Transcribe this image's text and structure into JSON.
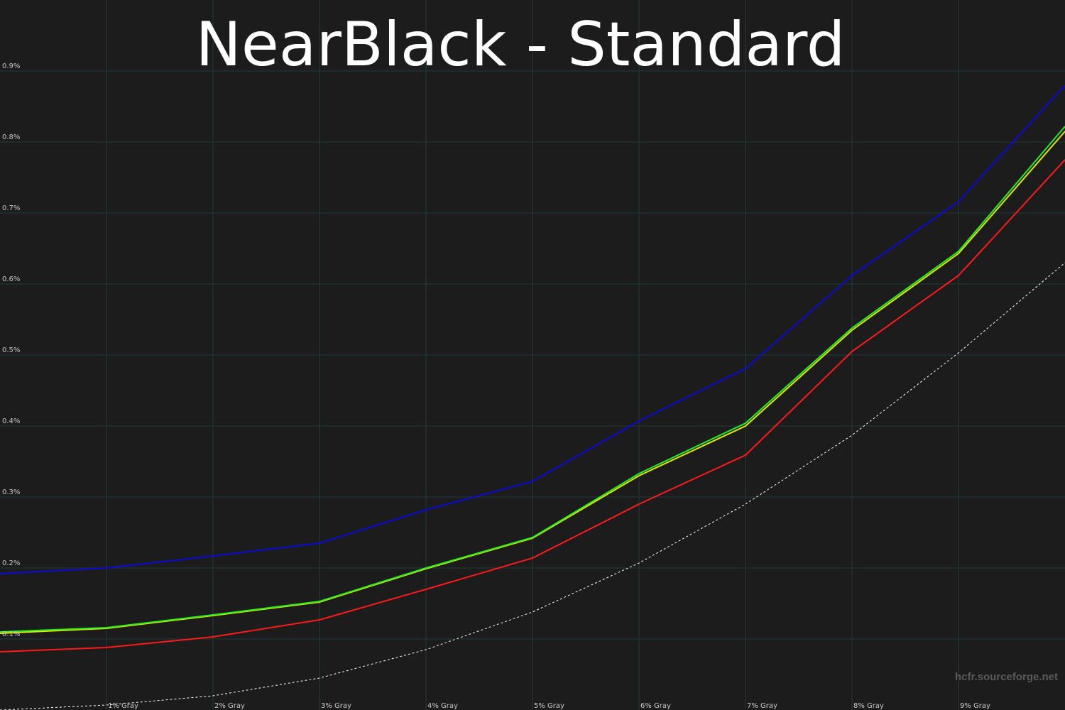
{
  "chart_data": {
    "type": "line",
    "title": "NearBlack - Standard",
    "watermark": "hcfr.sourceforge.net",
    "x": [
      0,
      1,
      2,
      3,
      4,
      5,
      6,
      7,
      8,
      9,
      10
    ],
    "xlim": [
      0,
      10
    ],
    "xticks": [
      {
        "value": 1,
        "label": "1% Gray"
      },
      {
        "value": 2,
        "label": "2% Gray"
      },
      {
        "value": 3,
        "label": "3% Gray"
      },
      {
        "value": 4,
        "label": "4% Gray"
      },
      {
        "value": 5,
        "label": "5% Gray"
      },
      {
        "value": 6,
        "label": "6% Gray"
      },
      {
        "value": 7,
        "label": "7% Gray"
      },
      {
        "value": 8,
        "label": "8% Gray"
      },
      {
        "value": 9,
        "label": "9% Gray"
      }
    ],
    "ylim": [
      0,
      1
    ],
    "yticks": [
      {
        "value": 0.1,
        "label": "0.1%"
      },
      {
        "value": 0.2,
        "label": "0.2%"
      },
      {
        "value": 0.3,
        "label": "0.3%"
      },
      {
        "value": 0.4,
        "label": "0.4%"
      },
      {
        "value": 0.5,
        "label": "0.5%"
      },
      {
        "value": 0.6,
        "label": "0.6%"
      },
      {
        "value": 0.7,
        "label": "0.7%"
      },
      {
        "value": 0.8,
        "label": "0.8%"
      },
      {
        "value": 0.9,
        "label": "0.9%"
      }
    ],
    "grid": true,
    "series": [
      {
        "color": "#ffffff",
        "dashed": true,
        "values": [
          0,
          0.007,
          0.02,
          0.045,
          0.085,
          0.138,
          0.207,
          0.29,
          0.387,
          0.503,
          0.63
        ]
      },
      {
        "color": "#ff1a1a",
        "values": [
          0.082,
          0.088,
          0.103,
          0.127,
          0.17,
          0.214,
          0.29,
          0.359,
          0.505,
          0.612,
          0.775
        ]
      },
      {
        "color": "#e6e600",
        "values": [
          0.108,
          0.115,
          0.133,
          0.152,
          0.199,
          0.242,
          0.33,
          0.4,
          0.535,
          0.643,
          0.815
        ]
      },
      {
        "color": "#22ee22",
        "values": [
          0.11,
          0.116,
          0.134,
          0.153,
          0.2,
          0.243,
          0.333,
          0.404,
          0.538,
          0.646,
          0.822
        ]
      },
      {
        "color": "#0a0adc",
        "values": [
          0.192,
          0.2,
          0.217,
          0.235,
          0.282,
          0.322,
          0.407,
          0.481,
          0.612,
          0.716,
          0.88
        ]
      }
    ]
  }
}
